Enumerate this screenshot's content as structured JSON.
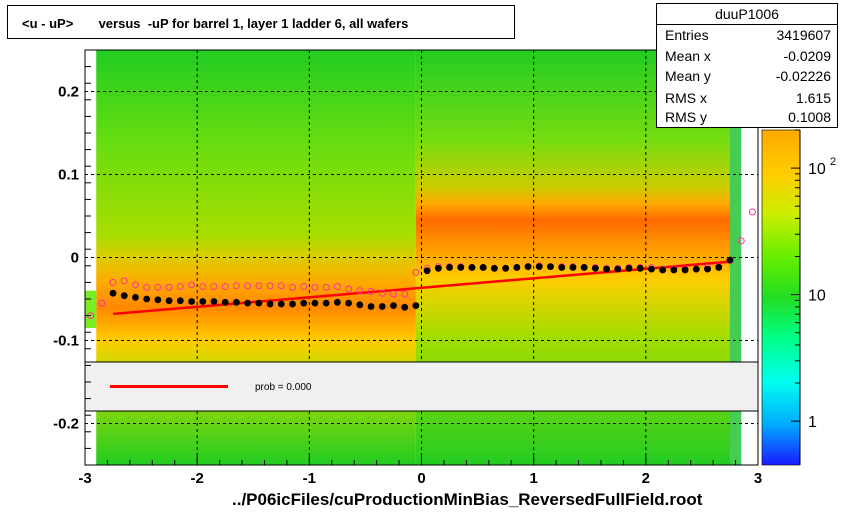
{
  "title": "<u - uP>       versus  -uP for barrel 1, layer 1 ladder 6, all wafers",
  "footer": "../P06icFiles/cuProductionMinBias_ReversedFullField.root",
  "stats": {
    "name": "duuP1006",
    "rows": [
      {
        "label": "Entries",
        "value": "3419607"
      },
      {
        "label": "Mean x",
        "value": "-0.0209"
      },
      {
        "label": "Mean y",
        "value": "-0.02226"
      },
      {
        "label": "RMS x",
        "value": "1.615"
      },
      {
        "label": "RMS y",
        "value": "0.1008"
      }
    ]
  },
  "legend": {
    "fit_label": "prob = 0.000",
    "fit_color": "#ff0000"
  },
  "colorbar": {
    "tick_labels": [
      "1",
      "10",
      "10"
    ],
    "exponent_label": "2"
  },
  "chart_data": {
    "type": "heatmap",
    "xlim": [
      -3,
      3
    ],
    "ylim": [
      -0.25,
      0.25
    ],
    "x_ticks": [
      -3,
      -2,
      -1,
      0,
      1,
      2,
      3
    ],
    "x_tick_labels": [
      "-3",
      "-2",
      "-1",
      "0",
      "1",
      "2",
      "3"
    ],
    "y_ticks": [
      -0.2,
      -0.1,
      0,
      0.1,
      0.2
    ],
    "y_tick_labels": [
      "-0.2",
      "-0.1",
      "0",
      "0.1",
      "0.2"
    ],
    "grid": true,
    "colorbar_range": [
      0.45,
      200
    ],
    "colorbar_scale": "log",
    "profile_mean": {
      "x": [
        -2.75,
        -2.65,
        -2.55,
        -2.45,
        -2.35,
        -2.25,
        -2.15,
        -2.05,
        -1.95,
        -1.85,
        -1.75,
        -1.65,
        -1.55,
        -1.45,
        -1.35,
        -1.25,
        -1.15,
        -1.05,
        -0.95,
        -0.85,
        -0.75,
        -0.65,
        -0.55,
        -0.45,
        -0.35,
        -0.25,
        -0.15,
        -0.05,
        0.05,
        0.15,
        0.25,
        0.35,
        0.45,
        0.55,
        0.65,
        0.75,
        0.85,
        0.95,
        1.05,
        1.15,
        1.25,
        1.35,
        1.45,
        1.55,
        1.65,
        1.75,
        1.85,
        1.95,
        2.05,
        2.15,
        2.25,
        2.35,
        2.45,
        2.55,
        2.65,
        2.75
      ],
      "y": [
        -0.043,
        -0.046,
        -0.048,
        -0.05,
        -0.051,
        -0.052,
        -0.052,
        -0.053,
        -0.053,
        -0.053,
        -0.054,
        -0.054,
        -0.055,
        -0.055,
        -0.056,
        -0.056,
        -0.056,
        -0.055,
        -0.055,
        -0.055,
        -0.054,
        -0.055,
        -0.057,
        -0.059,
        -0.059,
        -0.058,
        -0.06,
        -0.058,
        -0.016,
        -0.013,
        -0.012,
        -0.012,
        -0.012,
        -0.012,
        -0.013,
        -0.013,
        -0.012,
        -0.011,
        -0.011,
        -0.011,
        -0.012,
        -0.012,
        -0.012,
        -0.013,
        -0.014,
        -0.014,
        -0.013,
        -0.013,
        -0.014,
        -0.015,
        -0.015,
        -0.015,
        -0.014,
        -0.014,
        -0.012,
        -0.003
      ]
    },
    "profile_rms": {
      "x": [
        -2.95,
        -2.85,
        -2.75,
        -2.65,
        -2.55,
        -2.45,
        -2.35,
        -2.25,
        -2.15,
        -2.05,
        -1.95,
        -1.85,
        -1.75,
        -1.65,
        -1.55,
        -1.45,
        -1.35,
        -1.25,
        -1.15,
        -1.05,
        -0.95,
        -0.85,
        -0.75,
        -0.65,
        -0.55,
        -0.45,
        -0.35,
        -0.25,
        -0.15,
        -0.05,
        0.05,
        0.15,
        0.25,
        0.35,
        0.45,
        0.55,
        0.65,
        0.75,
        0.85,
        0.95,
        1.05,
        1.15,
        1.25,
        1.35,
        1.45,
        1.55,
        1.65,
        1.75,
        1.85,
        1.95,
        2.05,
        2.15,
        2.25,
        2.35,
        2.45,
        2.55,
        2.65,
        2.75,
        2.85,
        2.95
      ],
      "y": [
        -0.07,
        -0.055,
        -0.03,
        -0.028,
        -0.033,
        -0.036,
        -0.036,
        -0.036,
        -0.035,
        -0.033,
        -0.035,
        -0.035,
        -0.035,
        -0.034,
        -0.034,
        -0.034,
        -0.034,
        -0.034,
        -0.036,
        -0.035,
        -0.036,
        -0.036,
        -0.035,
        -0.038,
        -0.04,
        -0.041,
        -0.043,
        -0.044,
        -0.044,
        -0.018,
        -0.013,
        -0.011,
        -0.011,
        -0.011,
        -0.012,
        -0.012,
        -0.013,
        -0.013,
        -0.012,
        -0.011,
        -0.01,
        -0.011,
        -0.011,
        -0.011,
        -0.012,
        -0.012,
        -0.013,
        -0.013,
        -0.012,
        -0.012,
        -0.012,
        -0.014,
        -0.014,
        -0.014,
        -0.014,
        -0.012,
        -0.011,
        -0.004,
        0.02,
        0.055
      ]
    },
    "fit_line": {
      "x": [
        -2.75,
        2.75
      ],
      "y": [
        -0.068,
        -0.005
      ]
    }
  }
}
